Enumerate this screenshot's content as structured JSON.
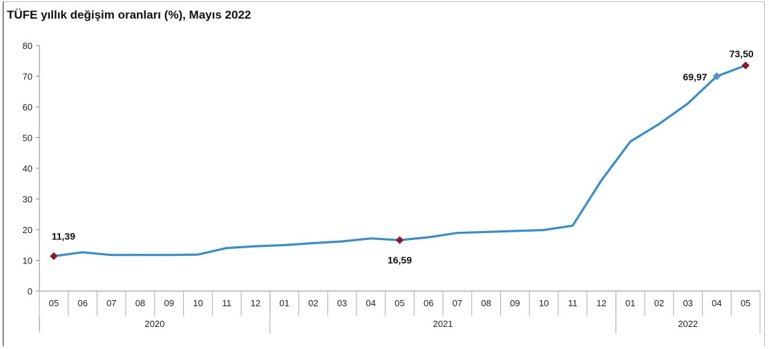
{
  "chart_data": {
    "type": "line",
    "title": "TÜFE yıllık değişim oranları (%), Mayıs 2022",
    "xlabel": "",
    "ylabel": "",
    "ylim": [
      0,
      80
    ],
    "yticks": [
      "0",
      "10",
      "20",
      "30",
      "40",
      "50",
      "60",
      "70",
      "80"
    ],
    "categories": [
      "05",
      "06",
      "07",
      "08",
      "09",
      "10",
      "11",
      "12",
      "01",
      "02",
      "03",
      "04",
      "05",
      "06",
      "07",
      "08",
      "09",
      "10",
      "11",
      "12",
      "01",
      "02",
      "03",
      "04",
      "05"
    ],
    "year_groups": [
      {
        "label": "2020",
        "count": 8
      },
      {
        "label": "2021",
        "count": 12
      },
      {
        "label": "2022",
        "count": 5
      }
    ],
    "series": [
      {
        "values": [
          11.39,
          12.62,
          11.76,
          11.77,
          11.75,
          11.89,
          14.03,
          14.6,
          14.97,
          15.61,
          16.19,
          17.14,
          16.59,
          17.53,
          18.95,
          19.25,
          19.58,
          19.89,
          21.31,
          36.08,
          48.69,
          54.44,
          61.14,
          69.97,
          73.5
        ],
        "color": "#3a8dc6"
      }
    ],
    "data_labels": [
      {
        "index": 0,
        "text": "11,39",
        "marker_color": "#8b1a2b"
      },
      {
        "index": 12,
        "text": "16,59",
        "marker_color": "#8b1a2b"
      },
      {
        "index": 23,
        "text": "69,97",
        "marker_color": "#5b8fc9"
      },
      {
        "index": 24,
        "text": "73,50",
        "marker_color": "#8b1a2b"
      }
    ],
    "grid": false
  }
}
